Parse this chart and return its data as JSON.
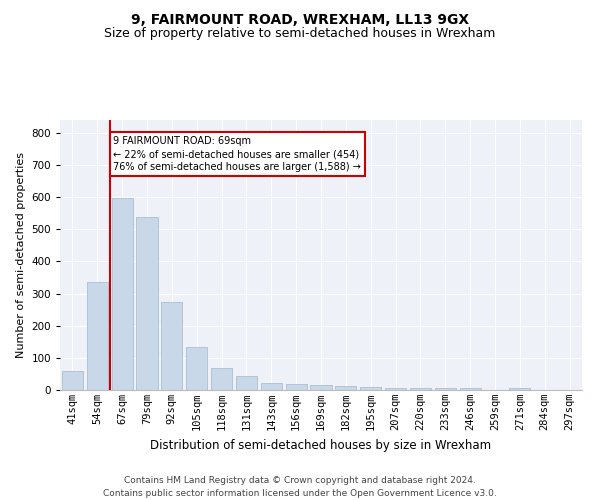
{
  "title": "9, FAIRMOUNT ROAD, WREXHAM, LL13 9GX",
  "subtitle": "Size of property relative to semi-detached houses in Wrexham",
  "xlabel": "Distribution of semi-detached houses by size in Wrexham",
  "ylabel": "Number of semi-detached properties",
  "categories": [
    "41sqm",
    "54sqm",
    "67sqm",
    "79sqm",
    "92sqm",
    "105sqm",
    "118sqm",
    "131sqm",
    "143sqm",
    "156sqm",
    "169sqm",
    "182sqm",
    "195sqm",
    "207sqm",
    "220sqm",
    "233sqm",
    "246sqm",
    "259sqm",
    "271sqm",
    "284sqm",
    "297sqm"
  ],
  "values": [
    60,
    335,
    598,
    537,
    275,
    135,
    70,
    45,
    23,
    20,
    17,
    14,
    10,
    7,
    5,
    7,
    6,
    1,
    6,
    1,
    0
  ],
  "bar_color": "#c8d8e8",
  "bar_edge_color": "#a0b8cc",
  "property_line_index": 2,
  "annotation_text": "9 FAIRMOUNT ROAD: 69sqm\n← 22% of semi-detached houses are smaller (454)\n76% of semi-detached houses are larger (1,588) →",
  "annotation_box_color": "#ffffff",
  "annotation_box_edge_color": "#cc0000",
  "property_line_color": "#cc0000",
  "ylim": [
    0,
    840
  ],
  "yticks": [
    0,
    100,
    200,
    300,
    400,
    500,
    600,
    700,
    800
  ],
  "bg_color": "#eef2f8",
  "footer_text": "Contains HM Land Registry data © Crown copyright and database right 2024.\nContains public sector information licensed under the Open Government Licence v3.0.",
  "title_fontsize": 10,
  "subtitle_fontsize": 9,
  "xlabel_fontsize": 8.5,
  "ylabel_fontsize": 8,
  "footer_fontsize": 6.5,
  "tick_fontsize": 7.5
}
